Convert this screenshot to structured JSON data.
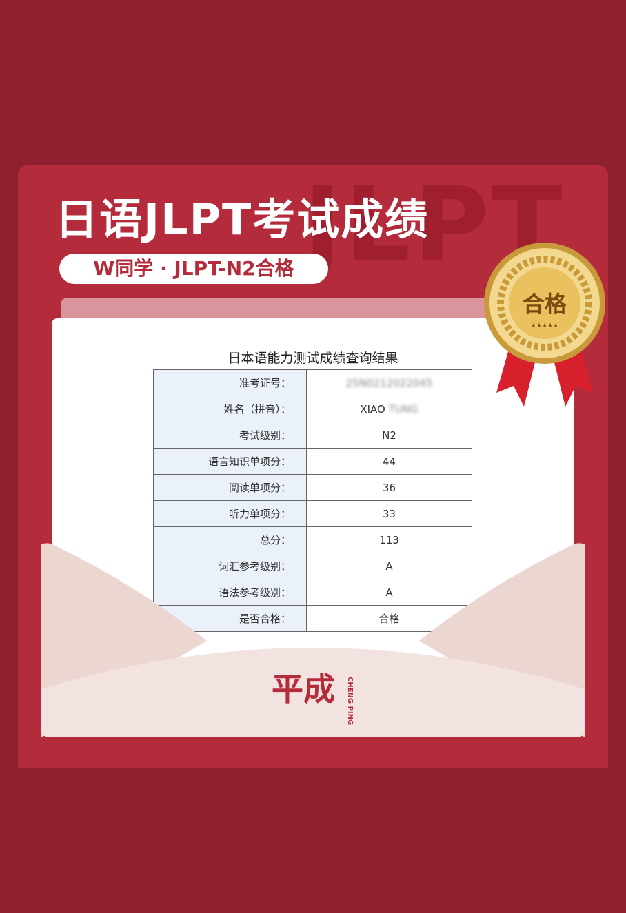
{
  "header": {
    "title": "日语JLPT考试成绩",
    "watermark": "JLPT",
    "subtitle": "W同学 · JLPT-N2合格"
  },
  "medal": {
    "label": "合格",
    "stars": "★★★★★"
  },
  "table": {
    "title": "日本语能力测试成绩查询结果",
    "rows": [
      [
        "准考证号：",
        "25N0212022045"
      ],
      [
        "姓名（拼音）：",
        "XIAO",
        "TUNG"
      ],
      [
        "考试级别：",
        "N2"
      ],
      [
        "语言知识单项分：",
        "44"
      ],
      [
        "阅读单项分：",
        "36"
      ],
      [
        "听力单项分：",
        "33"
      ],
      [
        "总分：",
        "113"
      ],
      [
        "词汇参考级别：",
        "A"
      ],
      [
        "语法参考级别：",
        "A"
      ],
      [
        "是否合格：",
        "合格"
      ]
    ]
  },
  "logo": {
    "text": "平成",
    "pinyin": "CHENG PING"
  }
}
